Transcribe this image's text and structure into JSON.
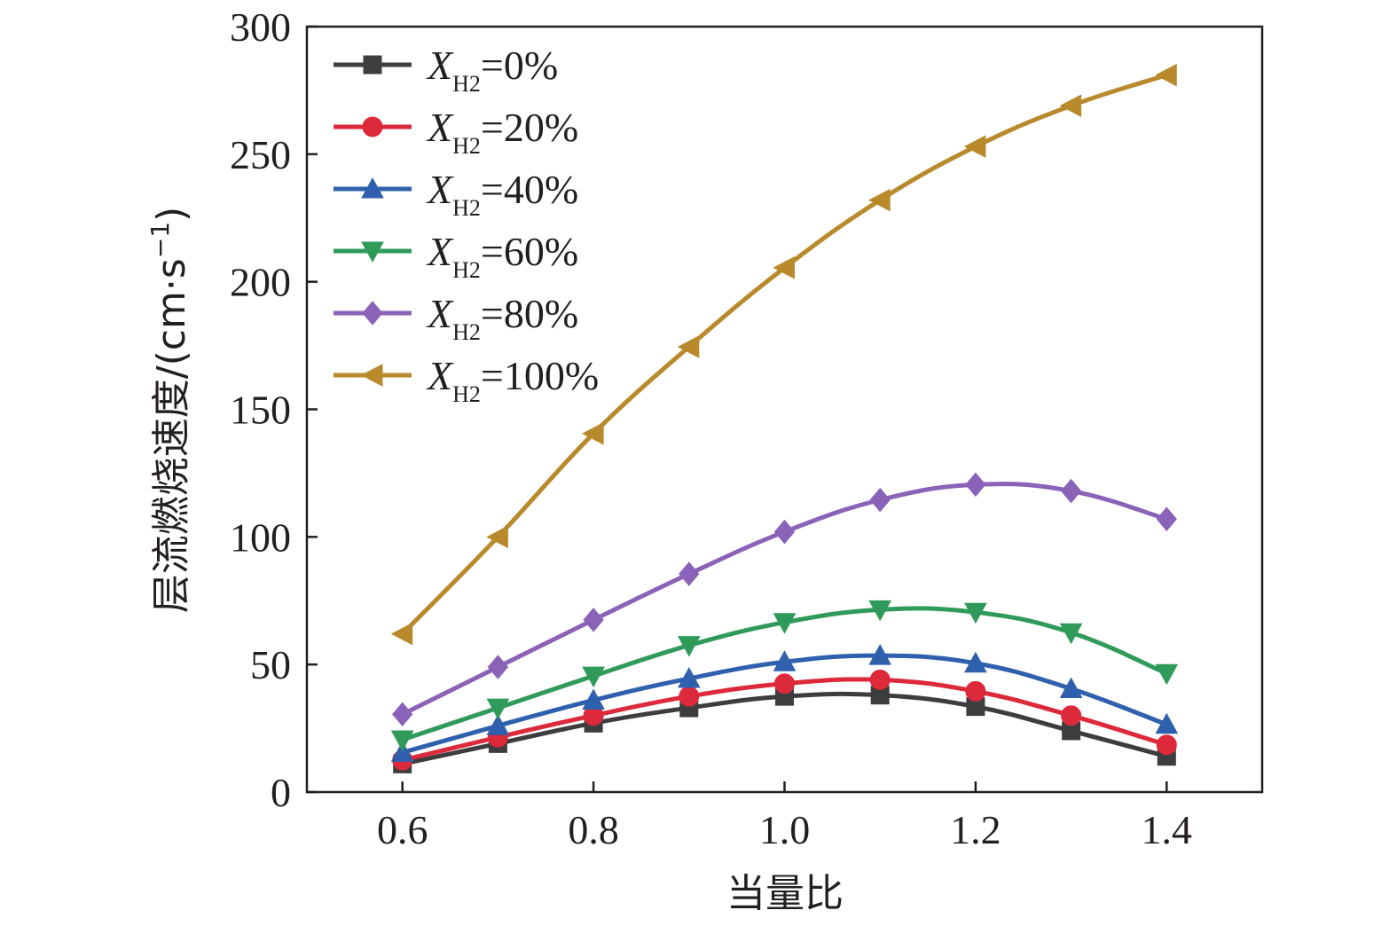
{
  "chart_data": {
    "type": "line",
    "title": "",
    "xlabel": "当量比",
    "ylabel": "层流燃烧速度/(cm·s⁻¹)",
    "ylabel_parts": {
      "text": "层流燃烧速度/(cm·s",
      "sup": "−1",
      "close": ")"
    },
    "xlim": [
      0.5,
      1.5
    ],
    "ylim": [
      0,
      300
    ],
    "xticks": [
      "0.6",
      "0.8",
      "1.0",
      "1.2",
      "1.4"
    ],
    "yticks": [
      "0",
      "50",
      "100",
      "150",
      "200",
      "250",
      "300"
    ],
    "grid": false,
    "legend_position": "top-left",
    "x": [
      0.6,
      0.7,
      0.8,
      0.9,
      1.0,
      1.1,
      1.2,
      1.3,
      1.4
    ],
    "series": [
      {
        "name": "XH2=0%",
        "legend_var": "X",
        "legend_sub": "H2",
        "legend_value": "=0%",
        "color": "#3d3d3f",
        "marker": "square",
        "values": [
          11,
          19,
          27,
          33,
          37.5,
          38,
          33.5,
          24,
          14
        ]
      },
      {
        "name": "XH2=20%",
        "legend_var": "X",
        "legend_sub": "H2",
        "legend_value": "=20%",
        "color": "#dc2a3b",
        "marker": "circle",
        "values": [
          12.5,
          21.5,
          30,
          37.5,
          42.5,
          44,
          39.5,
          30,
          18.5
        ]
      },
      {
        "name": "XH2=40%",
        "legend_var": "X",
        "legend_sub": "H2",
        "legend_value": "=40%",
        "color": "#2f60ad",
        "marker": "triangle-up",
        "values": [
          15.5,
          26,
          36,
          44.5,
          51,
          53.5,
          50.5,
          40.5,
          26.5
        ]
      },
      {
        "name": "XH2=60%",
        "legend_var": "X",
        "legend_sub": "H2",
        "legend_value": "=60%",
        "color": "#2f9a5a",
        "marker": "triangle-down",
        "values": [
          20.5,
          33,
          45.5,
          57.5,
          66.5,
          71.5,
          70.5,
          62.5,
          46.5
        ]
      },
      {
        "name": "XH2=80%",
        "legend_var": "X",
        "legend_sub": "H2",
        "legend_value": "=80%",
        "color": "#8a63b8",
        "marker": "diamond",
        "values": [
          30.5,
          49,
          67.5,
          85.5,
          102,
          114.5,
          120.5,
          118,
          107
        ]
      },
      {
        "name": "XH2=100%",
        "legend_var": "X",
        "legend_sub": "H2",
        "legend_value": "=100%",
        "color": "#b88a2c",
        "marker": "triangle-left",
        "values": [
          62,
          100,
          140.5,
          174.5,
          205.5,
          232,
          253,
          269,
          281
        ]
      }
    ]
  }
}
